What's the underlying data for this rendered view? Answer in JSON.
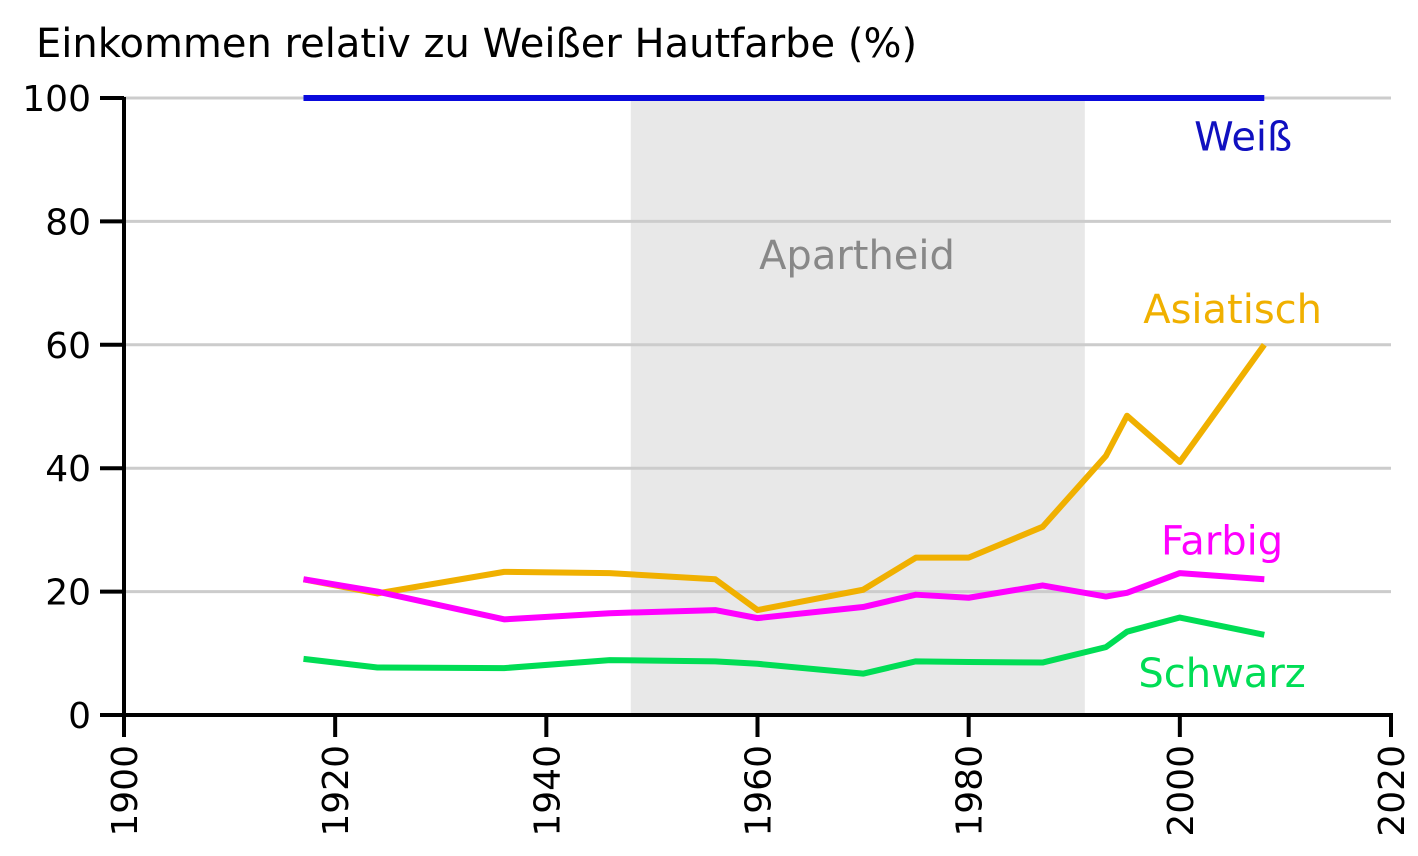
{
  "chart_data": {
    "type": "line",
    "title": "Einkommen relativ zu Weißer Hautfarbe (%)",
    "xlabel": "",
    "ylabel": "",
    "xlim": [
      1900,
      2020
    ],
    "ylim": [
      0,
      100
    ],
    "x_ticks": [
      "1900",
      "1920",
      "1940",
      "1960",
      "1980",
      "2000",
      "2020"
    ],
    "y_ticks": [
      "0",
      "20",
      "40",
      "60",
      "80",
      "100"
    ],
    "grid": "horizontal",
    "shaded_region": {
      "label": "Apartheid",
      "x_start": 1948,
      "x_end": 1991,
      "color": "#e8e8e8"
    },
    "series": [
      {
        "name": "Weiß",
        "color": "#0a0adc",
        "label_color": "#1010c0",
        "points": [
          [
            1917,
            100
          ],
          [
            2008,
            100
          ]
        ]
      },
      {
        "name": "Asiatisch",
        "color": "#f0b000",
        "label_color": "#f0b000",
        "points": [
          [
            1917,
            22
          ],
          [
            1924,
            19.7
          ],
          [
            1936,
            23.2
          ],
          [
            1946,
            23
          ],
          [
            1956,
            22
          ],
          [
            1960,
            17
          ],
          [
            1970,
            20.3
          ],
          [
            1975,
            25.5
          ],
          [
            1980,
            25.5
          ],
          [
            1987,
            30.5
          ],
          [
            1993,
            42
          ],
          [
            1995,
            48.5
          ],
          [
            2000,
            41
          ],
          [
            2008,
            60
          ]
        ]
      },
      {
        "name": "Farbig",
        "color": "#ff00ff",
        "label_color": "#ff00ff",
        "points": [
          [
            1917,
            22
          ],
          [
            1924,
            20
          ],
          [
            1936,
            15.5
          ],
          [
            1946,
            16.5
          ],
          [
            1956,
            17
          ],
          [
            1960,
            15.7
          ],
          [
            1970,
            17.5
          ],
          [
            1975,
            19.5
          ],
          [
            1980,
            19
          ],
          [
            1987,
            21
          ],
          [
            1993,
            19.2
          ],
          [
            1995,
            19.8
          ],
          [
            2000,
            23
          ],
          [
            2008,
            22
          ]
        ]
      },
      {
        "name": "Schwarz",
        "color": "#00dd55",
        "label_color": "#00dd55",
        "points": [
          [
            1917,
            9.1
          ],
          [
            1924,
            7.7
          ],
          [
            1936,
            7.6
          ],
          [
            1946,
            8.9
          ],
          [
            1956,
            8.7
          ],
          [
            1960,
            8.3
          ],
          [
            1970,
            6.7
          ],
          [
            1975,
            8.7
          ],
          [
            1980,
            8.6
          ],
          [
            1987,
            8.5
          ],
          [
            1993,
            11
          ],
          [
            1995,
            13.5
          ],
          [
            2000,
            15.8
          ],
          [
            2008,
            13
          ]
        ]
      }
    ]
  }
}
